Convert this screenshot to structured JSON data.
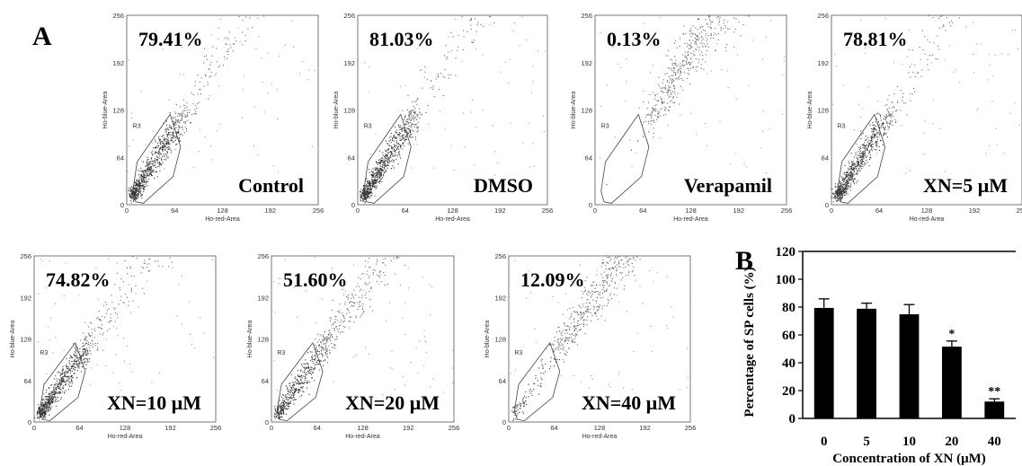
{
  "panel_a": {
    "letter": "A",
    "x_label": "Ho-red-Area",
    "y_label": "Ho-blue-Area",
    "gate_label": "R3",
    "ticks": [
      "0",
      "64",
      "128",
      "192",
      "256"
    ],
    "axis_max": 256,
    "plots": [
      {
        "condition": "Control",
        "percent": "79.41%",
        "sp_fraction": 0.7941
      },
      {
        "condition": "DMSO",
        "percent": "81.03%",
        "sp_fraction": 0.8103
      },
      {
        "condition": "Verapamil",
        "percent": "0.13%",
        "sp_fraction": 0.0013
      },
      {
        "condition": "XN=5 μM",
        "percent": "78.81%",
        "sp_fraction": 0.7881
      },
      {
        "condition": "XN=10 μM",
        "percent": "74.82%",
        "sp_fraction": 0.7482
      },
      {
        "condition": "XN=20 μM",
        "percent": "51.60%",
        "sp_fraction": 0.516
      },
      {
        "condition": "XN=40 μM",
        "percent": "12.09%",
        "sp_fraction": 0.1209
      }
    ]
  },
  "chart_data": {
    "type": "bar",
    "panel_letter": "B",
    "categories": [
      "0",
      "5",
      "10",
      "20",
      "40"
    ],
    "values": [
      79.4,
      78.8,
      74.8,
      51.6,
      12.1
    ],
    "errors": [
      6.5,
      4.0,
      7.0,
      4.0,
      2.0
    ],
    "significance": [
      "",
      "",
      "",
      "*",
      "**"
    ],
    "yticks": [
      "0",
      "20",
      "40",
      "60",
      "80",
      "100",
      "120"
    ],
    "ylim": [
      0,
      120
    ],
    "xlabel": "Concentration of XN (μM)",
    "ylabel": "Percentage of SP cells (%)",
    "bar_color": "#000000"
  }
}
